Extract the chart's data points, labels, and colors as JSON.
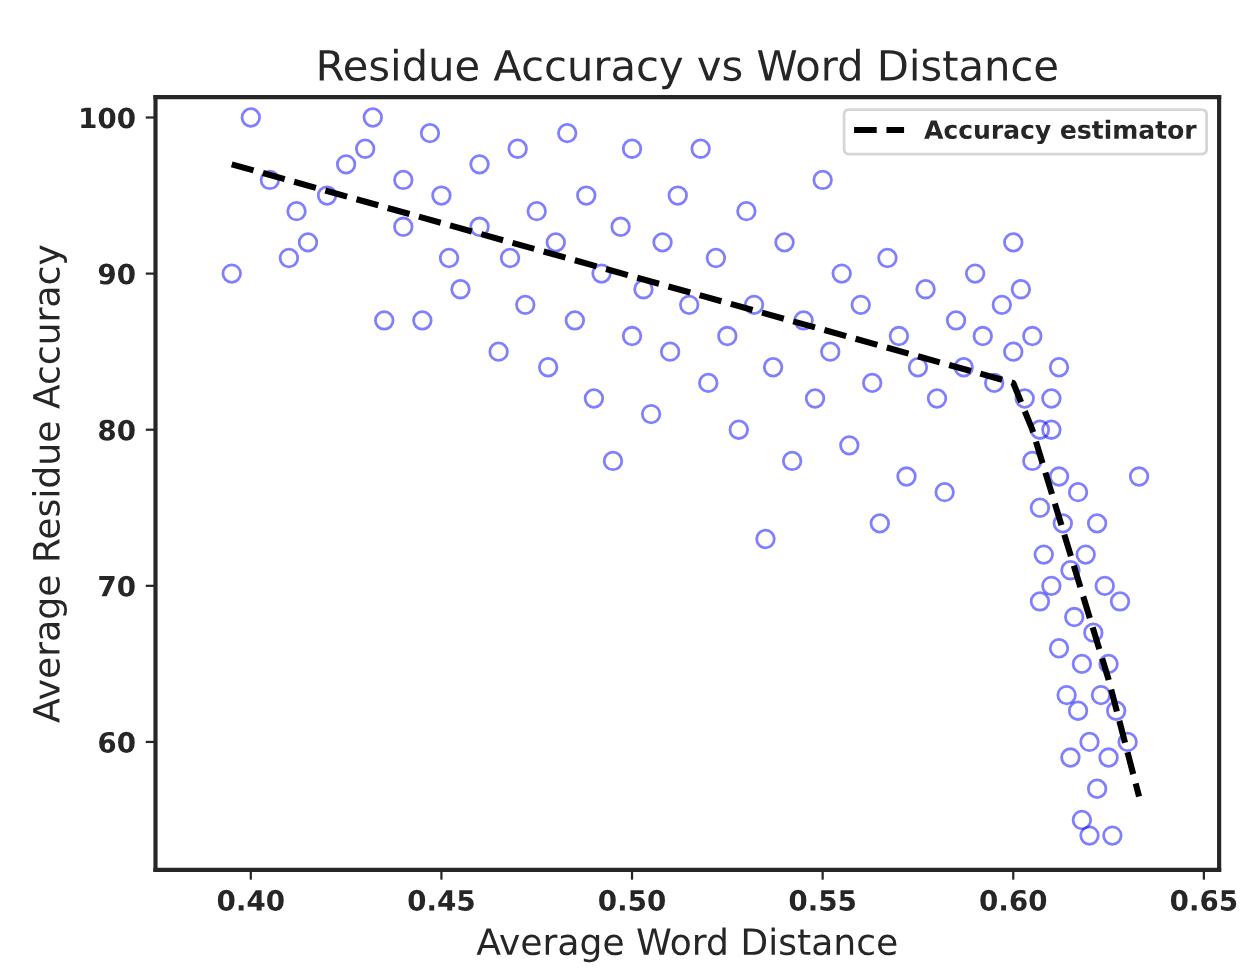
{
  "chart_data": {
    "type": "scatter",
    "title": "Residue Accuracy vs Word Distance",
    "xlabel": "Average Word Distance",
    "ylabel": "Average Residue Accuracy",
    "xlim": [
      0.375,
      0.654
    ],
    "ylim": [
      51.8,
      101.3
    ],
    "xticks": [
      {
        "value": 0.4,
        "label": "0.40"
      },
      {
        "value": 0.45,
        "label": "0.45"
      },
      {
        "value": 0.5,
        "label": "0.50"
      },
      {
        "value": 0.55,
        "label": "0.55"
      },
      {
        "value": 0.6,
        "label": "0.60"
      },
      {
        "value": 0.65,
        "label": "0.65"
      }
    ],
    "yticks": [
      60,
      70,
      80,
      90,
      100
    ],
    "grid": false,
    "legend": "top right",
    "series": [
      {
        "color": "#0000ff",
        "marker": "circle",
        "x": [
          0.395,
          0.4,
          0.405,
          0.41,
          0.412,
          0.415,
          0.42,
          0.425,
          0.43,
          0.432,
          0.435,
          0.44,
          0.44,
          0.445,
          0.447,
          0.45,
          0.452,
          0.455,
          0.46,
          0.46,
          0.465,
          0.468,
          0.47,
          0.472,
          0.475,
          0.478,
          0.48,
          0.483,
          0.485,
          0.488,
          0.49,
          0.492,
          0.495,
          0.497,
          0.5,
          0.5,
          0.503,
          0.505,
          0.508,
          0.51,
          0.512,
          0.515,
          0.518,
          0.52,
          0.522,
          0.525,
          0.528,
          0.53,
          0.532,
          0.535,
          0.537,
          0.54,
          0.542,
          0.545,
          0.548,
          0.55,
          0.552,
          0.555,
          0.557,
          0.56,
          0.563,
          0.565,
          0.567,
          0.57,
          0.572,
          0.575,
          0.577,
          0.58,
          0.582,
          0.585,
          0.587,
          0.59,
          0.592,
          0.595,
          0.597,
          0.6,
          0.6,
          0.602,
          0.603,
          0.605,
          0.607,
          0.605,
          0.607,
          0.608,
          0.61,
          0.61,
          0.612,
          0.612,
          0.613,
          0.614,
          0.615,
          0.615,
          0.616,
          0.617,
          0.617,
          0.618,
          0.618,
          0.619,
          0.62,
          0.62,
          0.621,
          0.622,
          0.622,
          0.623,
          0.624,
          0.625,
          0.625,
          0.626,
          0.627,
          0.628,
          0.63,
          0.633,
          0.61,
          0.612,
          0.607
        ],
        "values": [
          90,
          100,
          96,
          91,
          94,
          92,
          95,
          97,
          98,
          100,
          87,
          96,
          93,
          87,
          99,
          95,
          91,
          89,
          97,
          93,
          85,
          91,
          98,
          88,
          94,
          84,
          92,
          99,
          87,
          95,
          82,
          90,
          78,
          93,
          86,
          98,
          89,
          81,
          92,
          85,
          95,
          88,
          98,
          83,
          91,
          86,
          80,
          94,
          88,
          73,
          84,
          92,
          78,
          87,
          82,
          96,
          85,
          90,
          79,
          88,
          83,
          74,
          91,
          86,
          77,
          84,
          89,
          82,
          76,
          87,
          84,
          90,
          86,
          83,
          88,
          92,
          85,
          89,
          82,
          86,
          80,
          78,
          75,
          72,
          80,
          70,
          77,
          66,
          74,
          63,
          71,
          59,
          68,
          76,
          62,
          65,
          55,
          72,
          60,
          54,
          67,
          57,
          74,
          63,
          70,
          59,
          65,
          54,
          62,
          69,
          60,
          77,
          82,
          84,
          69
        ]
      },
      {
        "type": "line",
        "name": "Accuracy estimator",
        "color": "#000000",
        "line_style": "dashed",
        "marker": "none",
        "x": [
          0.395,
          0.6,
          0.605,
          0.615,
          0.625,
          0.633
        ],
        "values": [
          97,
          83,
          80,
          72,
          64,
          56.5
        ]
      }
    ]
  }
}
